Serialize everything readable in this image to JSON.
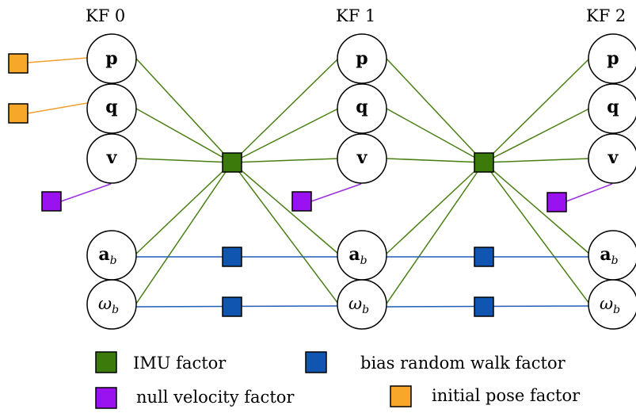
{
  "keyframes": [
    {
      "title": "KF 0",
      "nodes": {
        "p": "p",
        "q": "q",
        "v": "v",
        "ab_base": "a",
        "ab_sub": "b",
        "wb_base": "ω",
        "wb_sub": "b"
      }
    },
    {
      "title": "KF 1",
      "nodes": {
        "p": "p",
        "q": "q",
        "v": "v",
        "ab_base": "a",
        "ab_sub": "b",
        "wb_base": "ω",
        "wb_sub": "b"
      }
    },
    {
      "title": "KF 2",
      "nodes": {
        "p": "p",
        "q": "q",
        "v": "v",
        "ab_base": "a",
        "ab_sub": "b",
        "wb_base": "ω",
        "wb_sub": "b"
      }
    }
  ],
  "legend": [
    {
      "label": "IMU factor",
      "color": "#3b7a0b"
    },
    {
      "label": "bias random walk factor",
      "color": "#1056b0"
    },
    {
      "label": "null velocity factor",
      "color": "#9a12f0"
    },
    {
      "label": "initial pose factor",
      "color": "#f7a828"
    }
  ],
  "colors": {
    "imu_factor": "#3b7a0b",
    "imu_edge": "#4a7f14",
    "bias_factor": "#1056b0",
    "bias_edge": "#1f5fb5",
    "null_velocity_factor": "#9a12f0",
    "null_velocity_edge": "#9a30e0",
    "initial_pose_factor": "#f7a828",
    "initial_pose_edge": "#f0a030"
  }
}
